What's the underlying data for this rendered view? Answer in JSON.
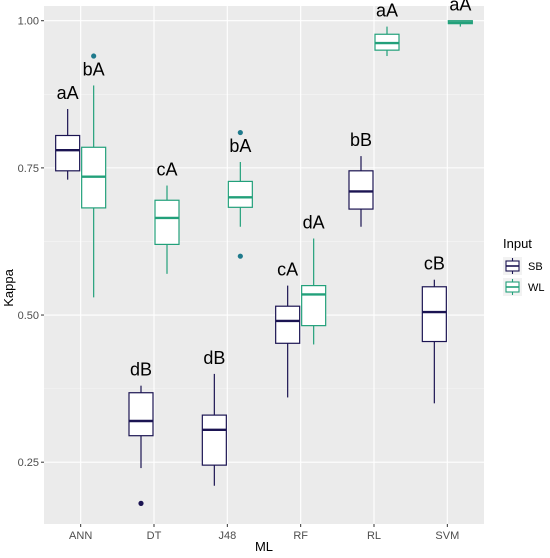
{
  "chart_data": {
    "type": "boxplot",
    "xlabel": "ML",
    "ylabel": "Kappa",
    "categories": [
      "ANN",
      "DT",
      "J48",
      "RF",
      "RL",
      "SVM"
    ],
    "ylim": [
      0.145,
      1.025
    ],
    "yticks": [
      0.25,
      0.5,
      0.75,
      1.0
    ],
    "ytick_labels": [
      "0.25",
      "0.50",
      "0.75",
      "1.00"
    ],
    "grid": true,
    "legend": {
      "title": "Input",
      "position": "right",
      "entries": [
        {
          "name": "SB",
          "color": "#1b1452"
        },
        {
          "name": "WL",
          "color": "#22a07a"
        }
      ]
    },
    "series": [
      {
        "name": "SB",
        "color": "#1b1452",
        "boxes": [
          {
            "category": "ANN",
            "min": 0.73,
            "q1": 0.745,
            "median": 0.78,
            "q3": 0.805,
            "max": 0.85,
            "outliers": [],
            "label": "aA"
          },
          {
            "category": "DT",
            "min": 0.24,
            "q1": 0.295,
            "median": 0.32,
            "q3": 0.368,
            "max": 0.38,
            "outliers": [
              0.18
            ],
            "label": "dB"
          },
          {
            "category": "J48",
            "min": 0.21,
            "q1": 0.245,
            "median": 0.305,
            "q3": 0.33,
            "max": 0.4,
            "outliers": [],
            "label": "dB"
          },
          {
            "category": "RF",
            "min": 0.36,
            "q1": 0.452,
            "median": 0.49,
            "q3": 0.515,
            "max": 0.55,
            "outliers": [],
            "label": "cA"
          },
          {
            "category": "RL",
            "min": 0.65,
            "q1": 0.68,
            "median": 0.71,
            "q3": 0.745,
            "max": 0.77,
            "outliers": [],
            "label": "bB"
          },
          {
            "category": "SVM",
            "min": 0.35,
            "q1": 0.455,
            "median": 0.505,
            "q3": 0.548,
            "max": 0.56,
            "outliers": [],
            "label": "cB"
          }
        ]
      },
      {
        "name": "WL",
        "color": "#22a07a",
        "boxes": [
          {
            "category": "ANN",
            "min": 0.53,
            "q1": 0.682,
            "median": 0.735,
            "q3": 0.785,
            "max": 0.89,
            "outliers": [
              0.94
            ],
            "label": "bA"
          },
          {
            "category": "DT",
            "min": 0.57,
            "q1": 0.62,
            "median": 0.665,
            "q3": 0.695,
            "max": 0.72,
            "outliers": [],
            "label": "cA"
          },
          {
            "category": "J48",
            "min": 0.65,
            "q1": 0.683,
            "median": 0.7,
            "q3": 0.727,
            "max": 0.76,
            "outliers": [
              0.81,
              0.6
            ],
            "label": "bA"
          },
          {
            "category": "RF",
            "min": 0.45,
            "q1": 0.482,
            "median": 0.535,
            "q3": 0.55,
            "max": 0.63,
            "outliers": [],
            "label": "dA"
          },
          {
            "category": "RL",
            "min": 0.94,
            "q1": 0.95,
            "median": 0.962,
            "q3": 0.977,
            "max": 0.99,
            "outliers": [],
            "label": "aA"
          },
          {
            "category": "SVM",
            "min": 0.99,
            "q1": 0.995,
            "median": 0.997,
            "q3": 1.0,
            "max": 1.0,
            "outliers": [],
            "label": "aA"
          }
        ]
      }
    ]
  },
  "colors": {
    "panel_background": "#ebebeb",
    "grid_major": "#ffffff",
    "outlier_wl": "#1f7a8c"
  }
}
